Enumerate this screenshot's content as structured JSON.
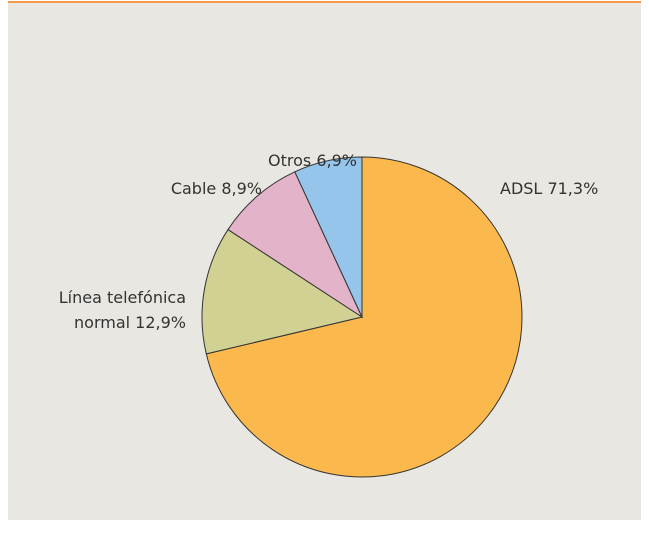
{
  "chart_data": {
    "type": "pie",
    "categories": [
      "ADSL",
      "Línea telefónica normal",
      "Cable",
      "Otros"
    ],
    "values": [
      71.3,
      12.9,
      8.9,
      6.9
    ],
    "value_labels": [
      "71,3%",
      "12,9%",
      "8,9%",
      "6,9%"
    ],
    "colors": [
      "#fbb84d",
      "#d0d193",
      "#e3b3c9",
      "#95c5ea"
    ]
  }
}
